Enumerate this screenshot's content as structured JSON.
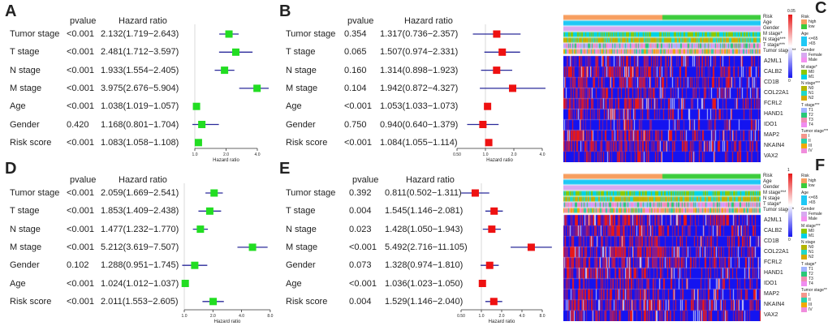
{
  "panel_labels": [
    "A",
    "B",
    "C",
    "D",
    "E",
    "F"
  ],
  "chart_data": [
    {
      "type": "forest",
      "panel": "A",
      "col_headers": [
        "pvalue",
        "Hazard ratio"
      ],
      "xlabel": "Hazard ratio",
      "xscale": "log",
      "xticks": [
        "1.0",
        "2.0",
        "4.0"
      ],
      "xtick_values": [
        1,
        2,
        4
      ],
      "marker_color": "#22dd22",
      "rows": [
        {
          "name": "Tumor stage",
          "pvalue": "<0.001",
          "hr_text": "2.132(1.719−2.643)",
          "hr": 2.132,
          "lo": 1.719,
          "hi": 2.643
        },
        {
          "name": "T stage",
          "pvalue": "<0.001",
          "hr_text": "2.481(1.712−3.597)",
          "hr": 2.481,
          "lo": 1.712,
          "hi": 3.597
        },
        {
          "name": "N stage",
          "pvalue": "<0.001",
          "hr_text": "1.933(1.554−2.405)",
          "hr": 1.933,
          "lo": 1.554,
          "hi": 2.405
        },
        {
          "name": "M stage",
          "pvalue": "<0.001",
          "hr_text": "3.975(2.676−5.904)",
          "hr": 3.975,
          "lo": 2.676,
          "hi": 5.904
        },
        {
          "name": "Age",
          "pvalue": "<0.001",
          "hr_text": "1.038(1.019−1.057)",
          "hr": 1.038,
          "lo": 1.019,
          "hi": 1.057
        },
        {
          "name": "Gender",
          "pvalue": "0.420",
          "hr_text": "1.168(0.801−1.704)",
          "hr": 1.168,
          "lo": 0.801,
          "hi": 1.704
        },
        {
          "name": "Risk score",
          "pvalue": "<0.001",
          "hr_text": "1.083(1.058−1.108)",
          "hr": 1.083,
          "lo": 1.058,
          "hi": 1.108
        }
      ]
    },
    {
      "type": "forest",
      "panel": "B",
      "col_headers": [
        "pvalue",
        "Hazard ratio"
      ],
      "xlabel": "Hazard ratio",
      "xscale": "log",
      "xticks": [
        "0.50",
        "1.0",
        "2.0",
        "4.0"
      ],
      "xtick_values": [
        0.5,
        1,
        2,
        4
      ],
      "marker_color": "#ee1111",
      "rows": [
        {
          "name": "Tumor stage",
          "pvalue": "0.354",
          "hr_text": "1.317(0.736−2.357)",
          "hr": 1.317,
          "lo": 0.736,
          "hi": 2.357
        },
        {
          "name": "T stage",
          "pvalue": "0.065",
          "hr_text": "1.507(0.974−2.331)",
          "hr": 1.507,
          "lo": 0.974,
          "hi": 2.331
        },
        {
          "name": "N stage",
          "pvalue": "0.160",
          "hr_text": "1.314(0.898−1.923)",
          "hr": 1.314,
          "lo": 0.898,
          "hi": 1.923
        },
        {
          "name": "M stage",
          "pvalue": "0.104",
          "hr_text": "1.942(0.872−4.327)",
          "hr": 1.942,
          "lo": 0.872,
          "hi": 4.327
        },
        {
          "name": "Age",
          "pvalue": "<0.001",
          "hr_text": "1.053(1.033−1.073)",
          "hr": 1.053,
          "lo": 1.033,
          "hi": 1.073
        },
        {
          "name": "Gender",
          "pvalue": "0.750",
          "hr_text": "0.940(0.640−1.379)",
          "hr": 0.94,
          "lo": 0.64,
          "hi": 1.379
        },
        {
          "name": "Risk score",
          "pvalue": "<0.001",
          "hr_text": "1.084(1.055−1.114)",
          "hr": 1.084,
          "lo": 1.055,
          "hi": 1.114
        }
      ]
    },
    {
      "type": "forest",
      "panel": "D",
      "col_headers": [
        "pvalue",
        "Hazard ratio"
      ],
      "xlabel": "Hazard ratio",
      "xscale": "log",
      "xticks": [
        "1.0",
        "2.0",
        "4.0",
        "8.0"
      ],
      "xtick_values": [
        1,
        2,
        4,
        8
      ],
      "marker_color": "#22dd22",
      "rows": [
        {
          "name": "Tumor stage",
          "pvalue": "<0.001",
          "hr_text": "2.059(1.669−2.541)",
          "hr": 2.059,
          "lo": 1.669,
          "hi": 2.541
        },
        {
          "name": "T stage",
          "pvalue": "<0.001",
          "hr_text": "1.853(1.409−2.438)",
          "hr": 1.853,
          "lo": 1.409,
          "hi": 2.438
        },
        {
          "name": "N stage",
          "pvalue": "<0.001",
          "hr_text": "1.477(1.232−1.770)",
          "hr": 1.477,
          "lo": 1.232,
          "hi": 1.77
        },
        {
          "name": "M stage",
          "pvalue": "<0.001",
          "hr_text": "5.212(3.619−7.507)",
          "hr": 5.212,
          "lo": 3.619,
          "hi": 7.507
        },
        {
          "name": "Gender",
          "pvalue": "0.102",
          "hr_text": "1.288(0.951−1.745)",
          "hr": 1.288,
          "lo": 0.951,
          "hi": 1.745
        },
        {
          "name": "Age",
          "pvalue": "<0.001",
          "hr_text": "1.024(1.012−1.037)",
          "hr": 1.024,
          "lo": 1.012,
          "hi": 1.037
        },
        {
          "name": "Risk score",
          "pvalue": "<0.001",
          "hr_text": "2.011(1.553−2.605)",
          "hr": 2.011,
          "lo": 1.553,
          "hi": 2.605
        }
      ]
    },
    {
      "type": "forest",
      "panel": "E",
      "col_headers": [
        "pvalue",
        "Hazard ratio"
      ],
      "xlabel": "Hazard ratio",
      "xscale": "log",
      "xticks": [
        "0.50",
        "1.0",
        "2.0",
        "4.0",
        "8.0"
      ],
      "xtick_values": [
        0.5,
        1,
        2,
        4,
        8
      ],
      "marker_color": "#ee1111",
      "rows": [
        {
          "name": "Tumor stage",
          "pvalue": "0.392",
          "hr_text": "0.811(0.502−1.311)",
          "hr": 0.811,
          "lo": 0.502,
          "hi": 1.311
        },
        {
          "name": "T stage",
          "pvalue": "0.004",
          "hr_text": "1.545(1.146−2.081)",
          "hr": 1.545,
          "lo": 1.146,
          "hi": 2.081
        },
        {
          "name": "N stage",
          "pvalue": "0.023",
          "hr_text": "1.428(1.050−1.943)",
          "hr": 1.428,
          "lo": 1.05,
          "hi": 1.943
        },
        {
          "name": "M stage",
          "pvalue": "<0.001",
          "hr_text": "5.492(2.716−11.105)",
          "hr": 5.492,
          "lo": 2.716,
          "hi": 11.105
        },
        {
          "name": "Gender",
          "pvalue": "0.073",
          "hr_text": "1.328(0.974−1.810)",
          "hr": 1.328,
          "lo": 0.974,
          "hi": 1.81
        },
        {
          "name": "Age",
          "pvalue": "<0.001",
          "hr_text": "1.036(1.023−1.050)",
          "hr": 1.036,
          "lo": 1.023,
          "hi": 1.05
        },
        {
          "name": "Risk score",
          "pvalue": "0.004",
          "hr_text": "1.529(1.146−2.040)",
          "hr": 1.529,
          "lo": 1.146,
          "hi": 2.04
        }
      ]
    },
    {
      "type": "heatmap",
      "panel": "C",
      "annotation_rows": [
        "Risk",
        "Age",
        "Gender",
        "M stage*",
        "N stage***",
        "T stage***",
        "Tumor stage***"
      ],
      "genes": [
        "A2ML1",
        "CALB2",
        "CD1B",
        "COL22A1",
        "FCRL2",
        "HAND1",
        "IDO1",
        "MAP2",
        "NKAIN4",
        "VAX2"
      ],
      "scale_max": "0.05",
      "scale_min": "0",
      "legend": [
        {
          "title": "Risk",
          "items": [
            {
              "label": "high",
              "color": "#f79e5f"
            },
            {
              "label": "low",
              "color": "#3ccc3c"
            }
          ]
        },
        {
          "title": "Age",
          "items": [
            {
              "label": "<=65",
              "color": "#1ec8f5"
            },
            {
              "label": ">65",
              "color": "#1ec8f5"
            }
          ]
        },
        {
          "title": "Gender",
          "items": [
            {
              "label": "Female",
              "color": "#d8a8f0"
            },
            {
              "label": "Male",
              "color": "#f490f0"
            }
          ]
        },
        {
          "title": "M stage*",
          "items": [
            {
              "label": "M0",
              "color": "#8cc800"
            },
            {
              "label": "M1",
              "color": "#00d2e6"
            }
          ]
        },
        {
          "title": "N stage***",
          "items": [
            {
              "label": "N0",
              "color": "#b4b400"
            },
            {
              "label": "N1",
              "color": "#20d8c8"
            },
            {
              "label": "N2",
              "color": "#d4aa00"
            }
          ]
        },
        {
          "title": "T stage***",
          "items": [
            {
              "label": "T1",
              "color": "#a0b4ff"
            },
            {
              "label": "T2",
              "color": "#28c878"
            },
            {
              "label": "T3",
              "color": "#f08cb4"
            },
            {
              "label": "T4",
              "color": "#f08cf0"
            }
          ]
        },
        {
          "title": "Tumor stage***",
          "items": [
            {
              "label": "I",
              "color": "#f5968c"
            },
            {
              "label": "II",
              "color": "#28d2aa"
            },
            {
              "label": "III",
              "color": "#f0aa00"
            },
            {
              "label": "IV",
              "color": "#f08cdc"
            }
          ]
        }
      ]
    },
    {
      "type": "heatmap",
      "panel": "F",
      "annotation_rows": [
        "Risk",
        "Age",
        "Gender",
        "M stage***",
        "N stage",
        "T stage*",
        "Tumor stage**"
      ],
      "genes": [
        "A2ML1",
        "CALB2",
        "CD1B",
        "COL22A1",
        "FCRL2",
        "HAND1",
        "IDO1",
        "MAP2",
        "NKAIN4",
        "VAX2"
      ],
      "scale_max": "1",
      "scale_min": "0",
      "legend": [
        {
          "title": "Risk",
          "items": [
            {
              "label": "high",
              "color": "#f79e5f"
            },
            {
              "label": "low",
              "color": "#3ccc3c"
            }
          ]
        },
        {
          "title": "Age",
          "items": [
            {
              "label": "<=65",
              "color": "#1ec8f5"
            },
            {
              "label": ">65",
              "color": "#1ec8f5"
            }
          ]
        },
        {
          "title": "Gender",
          "items": [
            {
              "label": "Female",
              "color": "#d8a8f0"
            },
            {
              "label": "Male",
              "color": "#f490f0"
            }
          ]
        },
        {
          "title": "M stage***",
          "items": [
            {
              "label": "M0",
              "color": "#8cc800"
            },
            {
              "label": "M1",
              "color": "#00d2e6"
            }
          ]
        },
        {
          "title": "N stage",
          "items": [
            {
              "label": "N0",
              "color": "#b4b400"
            },
            {
              "label": "N1",
              "color": "#20d8c8"
            },
            {
              "label": "N2",
              "color": "#d4aa00"
            }
          ]
        },
        {
          "title": "T stage*",
          "items": [
            {
              "label": "T1",
              "color": "#a0b4ff"
            },
            {
              "label": "T2",
              "color": "#28c878"
            },
            {
              "label": "T3",
              "color": "#f08cb4"
            },
            {
              "label": "T4",
              "color": "#f08cf0"
            }
          ]
        },
        {
          "title": "Tumor stage**",
          "items": [
            {
              "label": "I",
              "color": "#f5968c"
            },
            {
              "label": "II",
              "color": "#28d2aa"
            },
            {
              "label": "III",
              "color": "#f0aa00"
            },
            {
              "label": "IV",
              "color": "#f08cdc"
            }
          ]
        }
      ]
    }
  ]
}
